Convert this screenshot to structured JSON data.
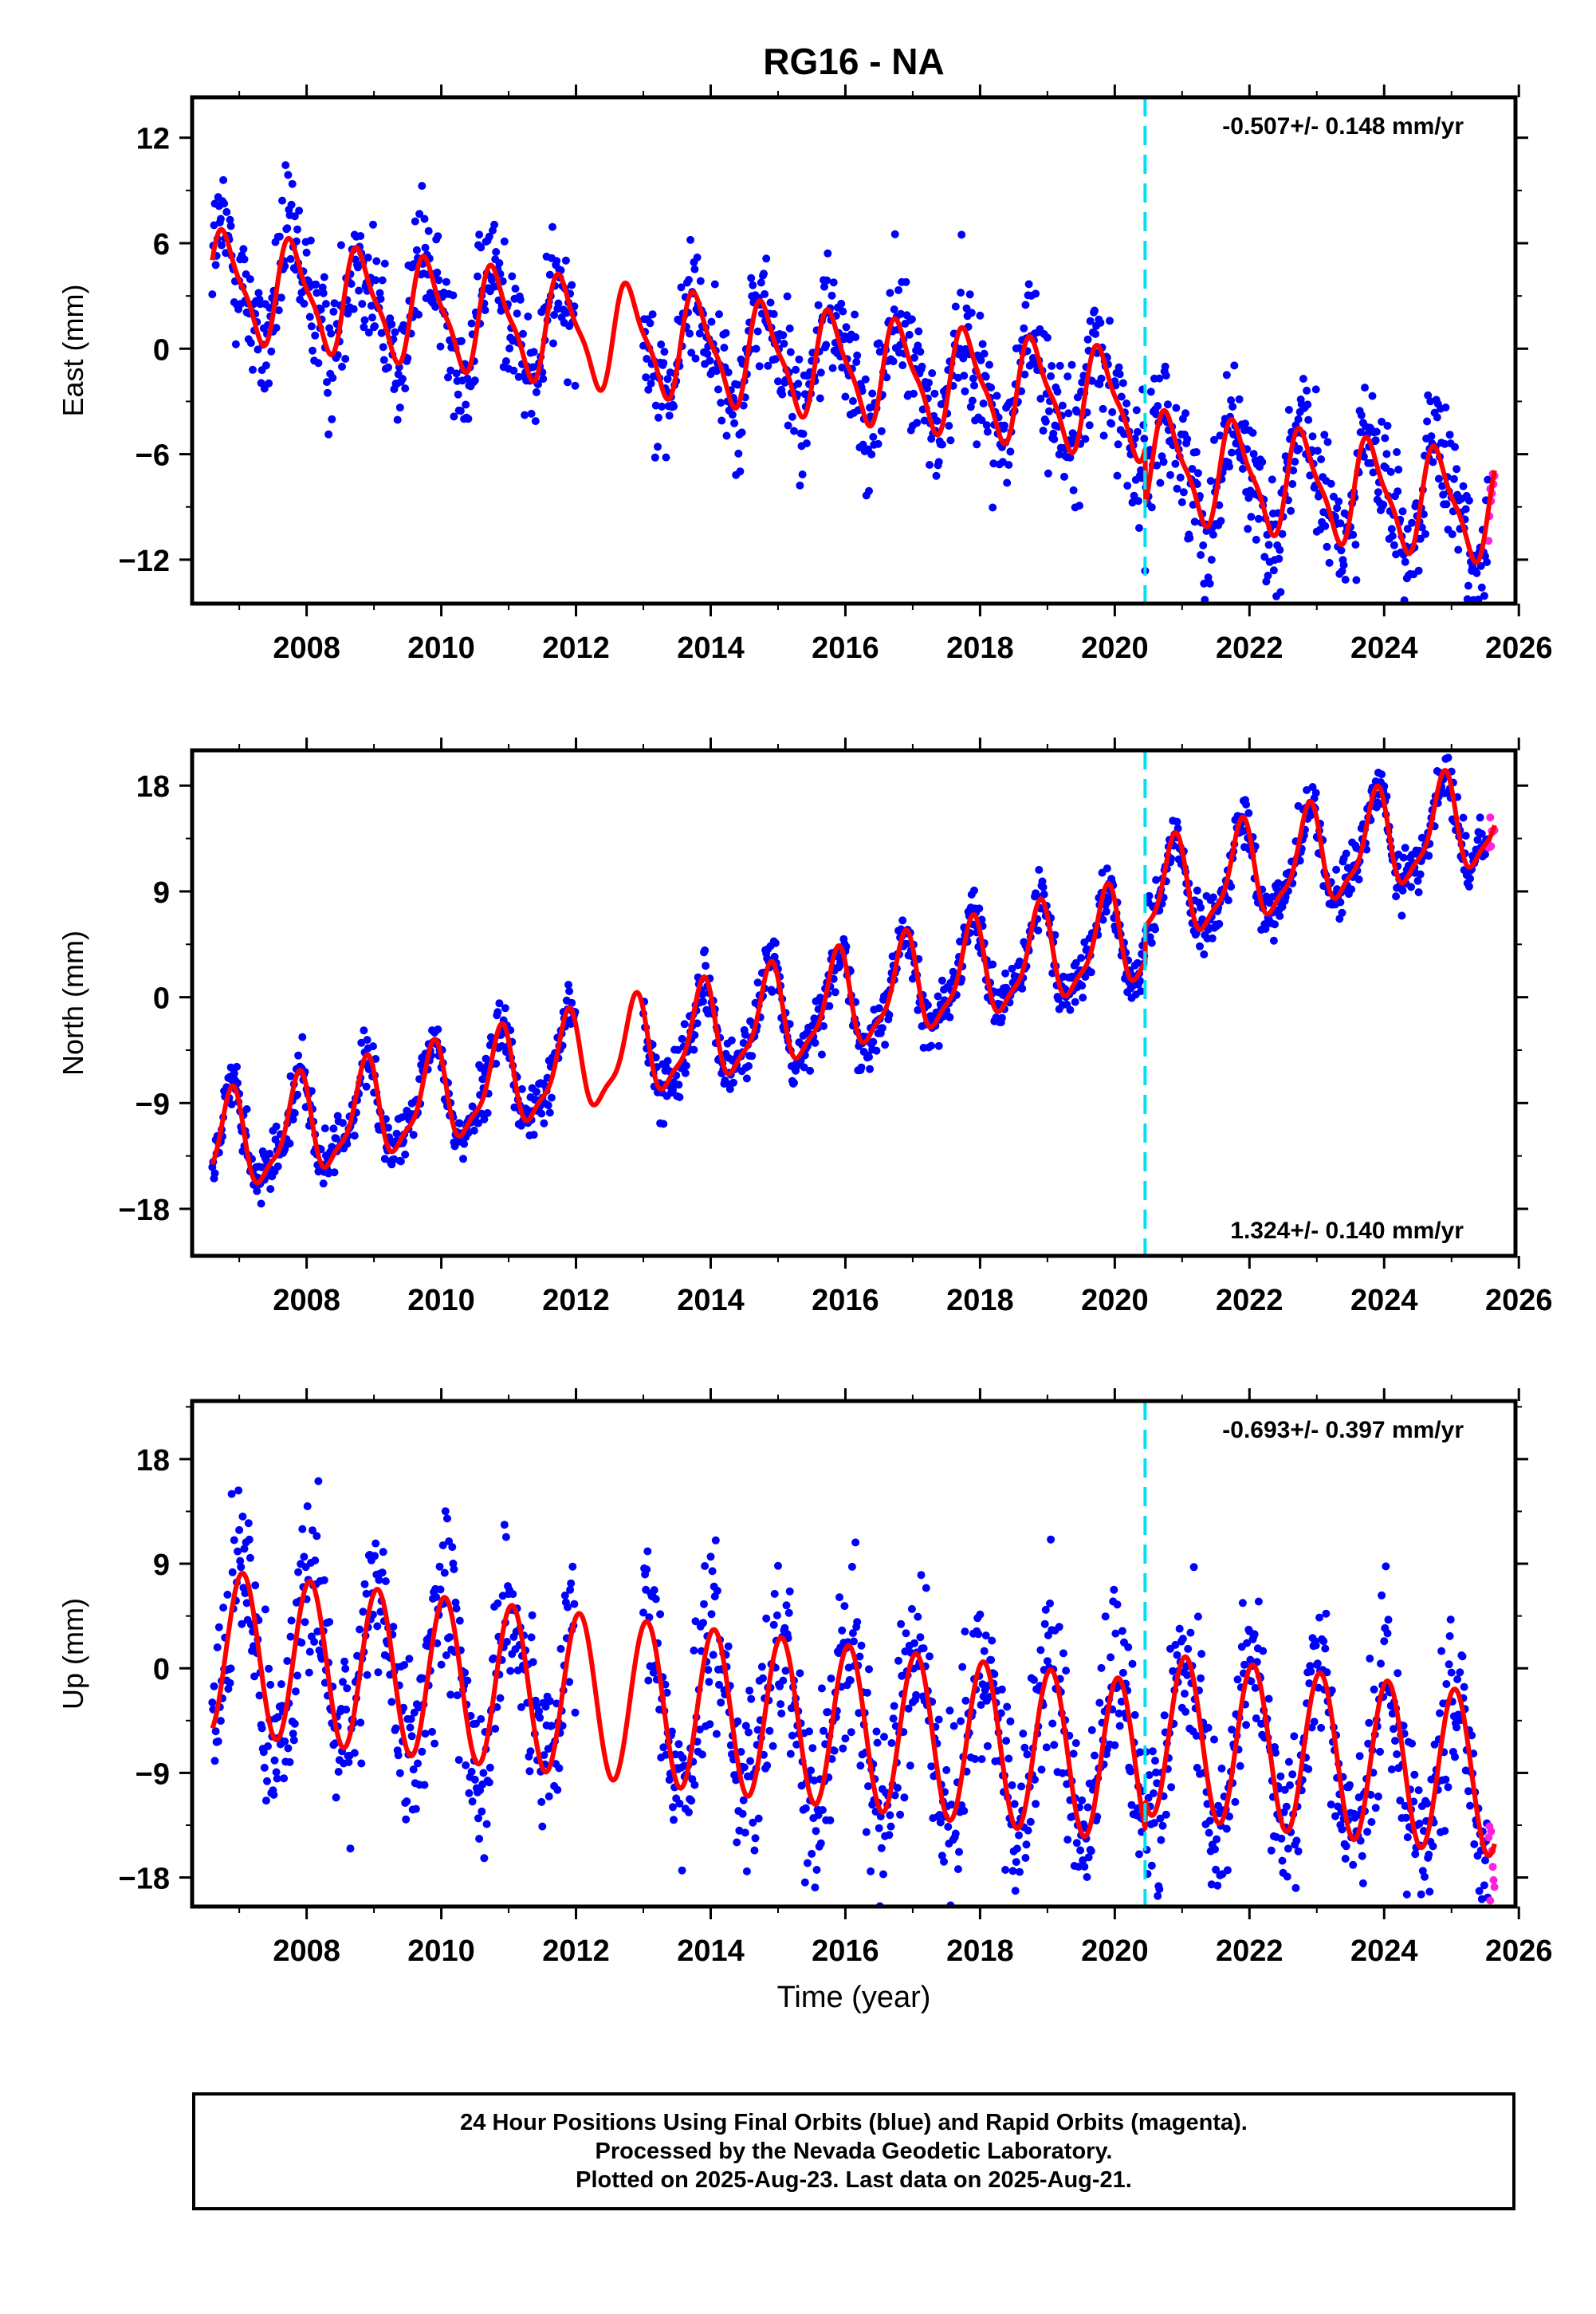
{
  "figure_title": "RG16 - NA",
  "x_axis_title": "Time (year)",
  "x_ticks": [
    "2008",
    "2010",
    "2012",
    "2014",
    "2016",
    "2018",
    "2020",
    "2022",
    "2024",
    "2026"
  ],
  "colors": {
    "final_orbits": "#0000ff",
    "rapid_orbits": "#ff22dd",
    "model_fit": "#ff0000",
    "equipment_change": "#00e0f0"
  },
  "footer": {
    "line1": "24 Hour Positions Using Final Orbits (blue) and Rapid Orbits (magenta).",
    "line2": "Processed by the Nevada Geodetic Laboratory.",
    "line3": "Plotted on 2025-Aug-23. Last data on 2025-Aug-21."
  },
  "chart_data": [
    {
      "type": "scatter",
      "ylabel": "East (mm)",
      "xlim": [
        2006.3,
        2025.95
      ],
      "ylim": [
        -14.5,
        14.3
      ],
      "y_ticks": [
        "12",
        "6",
        "0",
        "−6",
        "−12"
      ],
      "y_tick_values": [
        12,
        6,
        0,
        -6,
        -12
      ],
      "rate_annotation": "-0.507+/- 0.148 mm/yr",
      "rate_position": "top-right",
      "rate_mm_per_yr": -0.507,
      "seasonal_amplitude_mm": 2.8,
      "series_offset_mm": 3.7,
      "noise_sd_mm": 1.8,
      "equipment_change_year": 2020.45,
      "data_gap_years": [
        2012.0,
        2013.0
      ],
      "first_data_year": 2006.6,
      "last_data_year": 2025.64,
      "rapid_orbits_start_year": 2025.55,
      "grid": false
    },
    {
      "type": "scatter",
      "ylabel": "North (mm)",
      "xlim": [
        2006.3,
        2025.95
      ],
      "ylim": [
        -22,
        21
      ],
      "y_ticks": [
        "18",
        "9",
        "0",
        "−9",
        "−18"
      ],
      "y_tick_values": [
        18,
        9,
        0,
        -9,
        -18
      ],
      "rate_annotation": "1.324+/- 0.140 mm/yr",
      "rate_position": "bottom-right",
      "rate_mm_per_yr": 1.324,
      "seasonal_amplitude_mm": 4.0,
      "series_offset_mm": -13.0,
      "noise_sd_mm": 1.2,
      "equipment_change_year": 2020.45,
      "data_gap_years": [
        2012.0,
        2013.0
      ],
      "first_data_year": 2006.6,
      "last_data_year": 2025.64,
      "rapid_orbits_start_year": 2025.55,
      "grid": false
    },
    {
      "type": "scatter",
      "ylabel": "Up (mm)",
      "xlim": [
        2006.3,
        2025.95
      ],
      "ylim": [
        -20.5,
        23
      ],
      "y_ticks": [
        "18",
        "9",
        "0",
        "−9",
        "−18"
      ],
      "y_tick_values": [
        18,
        9,
        0,
        -9,
        -18
      ],
      "rate_annotation": "-0.693+/- 0.397 mm/yr",
      "rate_position": "top-right",
      "rate_mm_per_yr": -0.693,
      "seasonal_amplitude_mm": 7.0,
      "series_offset_mm": 1.5,
      "noise_sd_mm": 3.8,
      "equipment_change_year": 2020.45,
      "data_gap_years": [
        2012.0,
        2013.0
      ],
      "first_data_year": 2006.6,
      "last_data_year": 2025.64,
      "rapid_orbits_start_year": 2025.55,
      "grid": false
    }
  ]
}
